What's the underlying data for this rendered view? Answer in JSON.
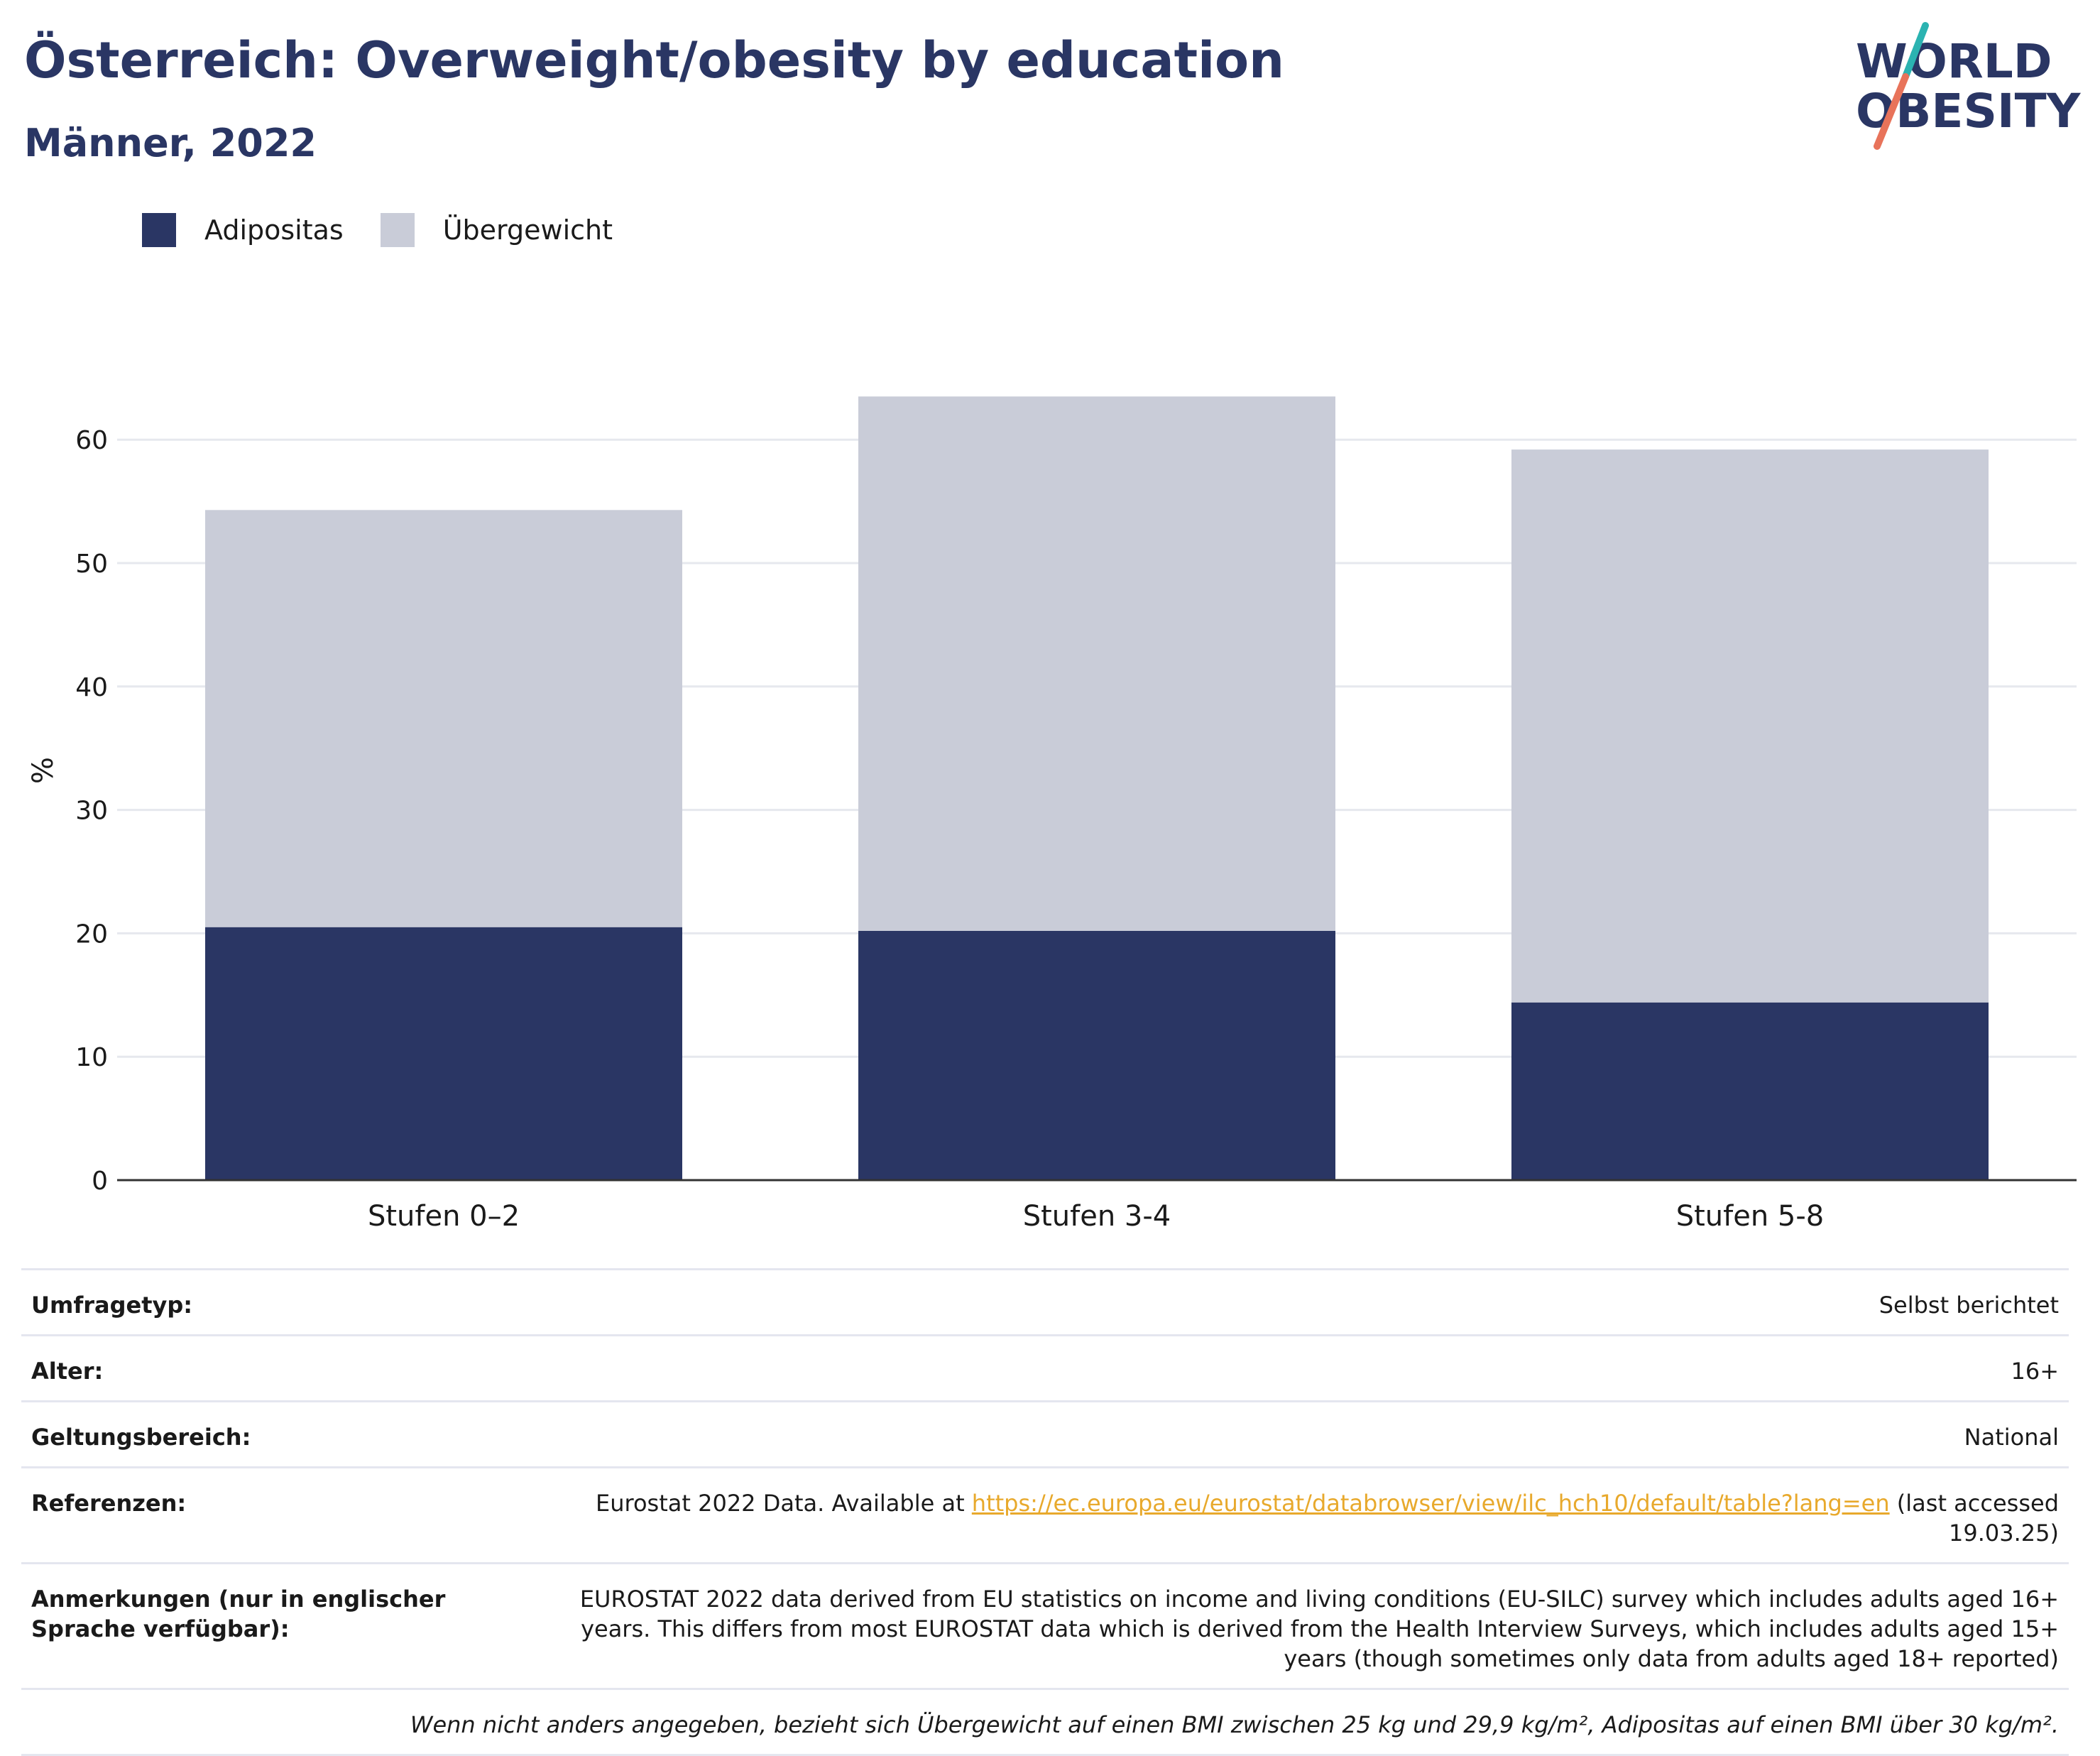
{
  "header": {
    "title": "Österreich: Overweight/obesity by education",
    "subtitle": "Männer, 2022"
  },
  "logo": {
    "line1": "WORLD",
    "line2": "OBESITY"
  },
  "colors": {
    "adipositas": "#2a3664",
    "uebergewicht": "#c9ccd8",
    "grid": "#e6e8ee",
    "axis": "#333333",
    "title": "#2a3664",
    "link": "#e8a92c",
    "logo_teal": "#2bb3b1",
    "logo_coral": "#e8735a"
  },
  "legend": [
    {
      "label": "Adipositas",
      "color": "#2a3664"
    },
    {
      "label": "Übergewicht",
      "color": "#c9ccd8"
    }
  ],
  "chart_data": {
    "type": "bar",
    "stacked": true,
    "categories": [
      "Stufen 0–2",
      "Stufen 3-4",
      "Stufen 5-8"
    ],
    "series": [
      {
        "name": "Adipositas",
        "values": [
          20.5,
          20.2,
          14.4
        ]
      },
      {
        "name": "Übergewicht",
        "values": [
          33.8,
          43.3,
          44.8
        ]
      }
    ],
    "totals": [
      54.3,
      63.5,
      59.2
    ],
    "ylabel": "%",
    "ylim": [
      0,
      65
    ],
    "yticks": [
      0,
      10,
      20,
      30,
      40,
      50,
      60
    ],
    "grid": true,
    "legend_position": "top-left"
  },
  "info": {
    "survey_type": {
      "label": "Umfragetyp:",
      "value": "Selbst berichtet"
    },
    "age": {
      "label": "Alter:",
      "value": "16+"
    },
    "coverage": {
      "label": "Geltungsbereich:",
      "value": "National"
    },
    "references": {
      "label": "Referenzen:",
      "prefix": "Eurostat 2022 Data. Available at ",
      "link": "https://ec.europa.eu/eurostat/databrowser/view/ilc_hch10/default/table?lang=en",
      "suffix": " (last accessed 19.03.25)"
    },
    "notes": {
      "label": "Anmerkungen (nur in englischer Sprache verfügbar):",
      "value": "EUROSTAT 2022 data derived from EU statistics on income and living conditions (EU-SILC) survey which includes adults aged 16+ years. This differs from most EUROSTAT data which is derived from the Health Interview Surveys, which includes adults aged 15+ years (though sometimes only data from adults aged 18+ reported)"
    },
    "footnote": "Wenn nicht anders angegeben, bezieht sich Übergewicht auf einen BMI zwischen 25 kg und 29,9 kg/m², Adipositas auf einen BMI über 30 kg/m²."
  }
}
